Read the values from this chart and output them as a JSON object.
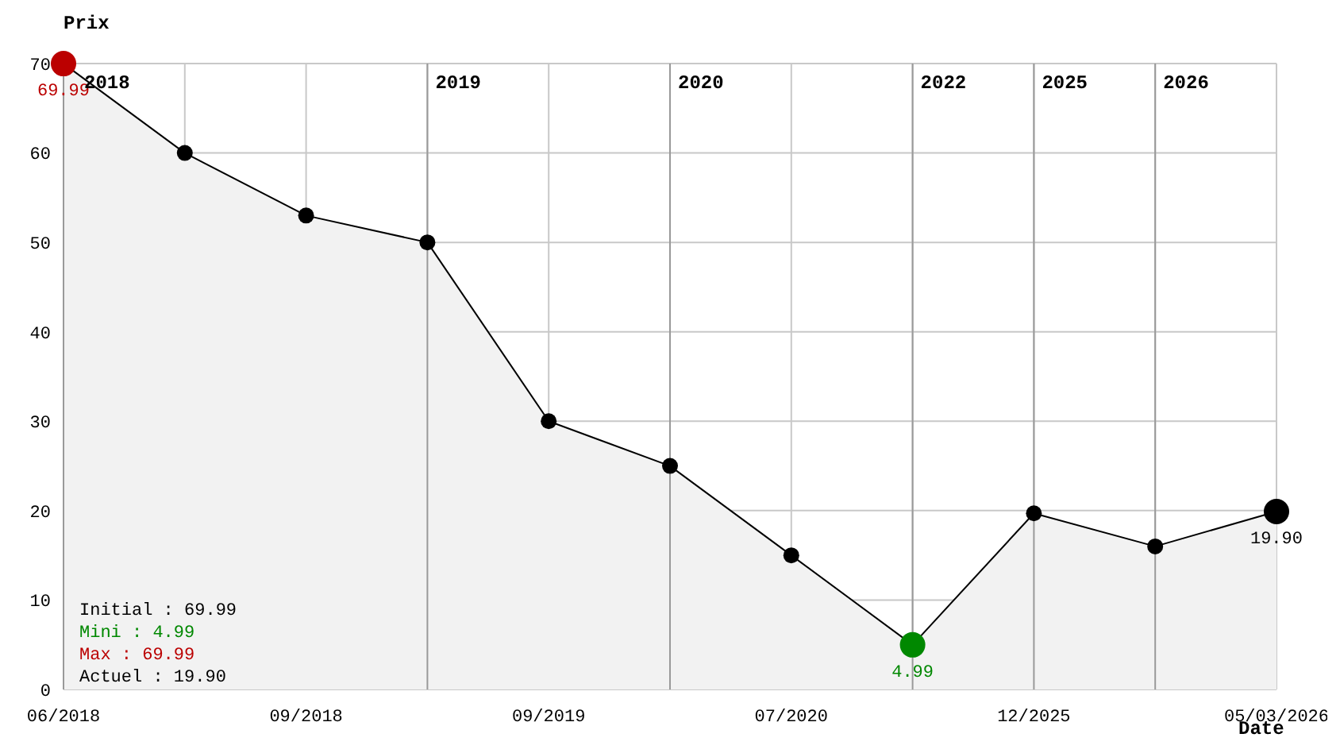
{
  "chart_data": {
    "type": "area",
    "xlabel": "Date",
    "ylabel": "Prix",
    "categories": [
      "06/2018",
      null,
      "09/2018",
      null,
      "09/2019",
      null,
      "07/2020",
      null,
      "12/2025",
      null,
      "05/03/2026"
    ],
    "series": [
      {
        "color": "#000000",
        "values": [
          69.99,
          60,
          53,
          50,
          30,
          25,
          15,
          4.99,
          19.7,
          16,
          19.9
        ],
        "colors": [
          "#bb0000",
          "#000000",
          "#000000",
          "#000000",
          "#000000",
          "#000000",
          "#000000",
          "#008800",
          "#000000",
          "#000000",
          "#000000"
        ],
        "value_labels": [
          "69.99",
          null,
          null,
          null,
          null,
          null,
          null,
          "4.99",
          null,
          null,
          "19.90"
        ]
      }
    ],
    "ylim": [
      0,
      70
    ],
    "yticks": [
      0,
      10,
      20,
      30,
      40,
      50,
      60,
      70
    ],
    "grid": true,
    "marker": "circle",
    "legend": false,
    "annotations": [
      "2018",
      "2019",
      "2020",
      "2022",
      "2025",
      "2026",
      "Initial : 69.99",
      "Mini : 4.99",
      "Max : 69.99",
      "Actuel : 19.90"
    ]
  }
}
